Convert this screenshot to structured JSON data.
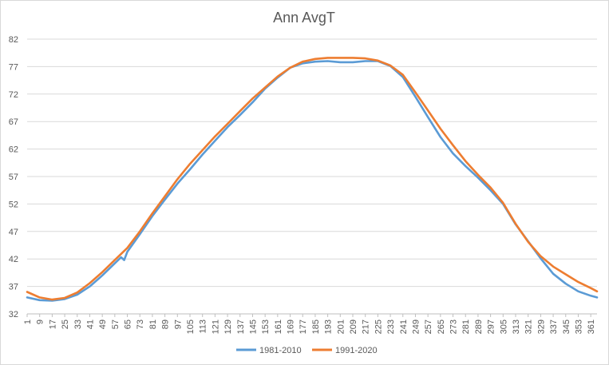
{
  "chart_data": {
    "type": "line",
    "title": "Ann AvgT",
    "xlabel": "",
    "ylabel": "",
    "ylim": [
      32,
      82
    ],
    "yticks": [
      32,
      37,
      42,
      47,
      52,
      57,
      62,
      67,
      72,
      77,
      82
    ],
    "xlim": [
      1,
      365
    ],
    "xticks": [
      1,
      9,
      17,
      25,
      33,
      41,
      49,
      57,
      65,
      73,
      81,
      89,
      97,
      105,
      113,
      121,
      129,
      137,
      145,
      153,
      161,
      169,
      177,
      185,
      193,
      201,
      209,
      217,
      225,
      233,
      241,
      249,
      257,
      265,
      273,
      281,
      289,
      297,
      305,
      313,
      321,
      329,
      337,
      345,
      353,
      361
    ],
    "grid": true,
    "legend_position": "bottom",
    "series": [
      {
        "name": "1981-2010",
        "color": "#5b9bd5",
        "x": [
          1,
          9,
          17,
          25,
          33,
          41,
          49,
          57,
          61,
          63,
          65,
          73,
          81,
          89,
          97,
          105,
          113,
          121,
          129,
          137,
          145,
          153,
          161,
          169,
          177,
          185,
          193,
          201,
          209,
          217,
          225,
          233,
          241,
          249,
          257,
          265,
          273,
          281,
          289,
          297,
          305,
          313,
          321,
          329,
          337,
          345,
          353,
          361,
          365
        ],
        "values": [
          35.0,
          34.5,
          34.4,
          34.7,
          35.5,
          37.0,
          39.0,
          41.2,
          42.3,
          41.8,
          43.3,
          46.5,
          49.8,
          52.8,
          55.7,
          58.3,
          61.0,
          63.5,
          66.0,
          68.2,
          70.5,
          73.0,
          75.0,
          76.8,
          77.6,
          77.9,
          78.0,
          77.8,
          77.8,
          78.0,
          78.0,
          77.1,
          75.1,
          71.5,
          67.8,
          64.2,
          61.2,
          58.9,
          56.8,
          54.5,
          52.0,
          48.3,
          45.2,
          42.1,
          39.3,
          37.5,
          36.1,
          35.3,
          35.0
        ]
      },
      {
        "name": "1991-2020",
        "color": "#ed7d31",
        "x": [
          1,
          9,
          17,
          25,
          33,
          41,
          49,
          57,
          65,
          73,
          81,
          89,
          97,
          105,
          113,
          121,
          129,
          137,
          145,
          153,
          161,
          169,
          177,
          185,
          193,
          201,
          209,
          217,
          225,
          233,
          241,
          249,
          257,
          265,
          273,
          281,
          289,
          297,
          305,
          313,
          321,
          329,
          337,
          345,
          353,
          361,
          365
        ],
        "values": [
          36.0,
          35.0,
          34.6,
          34.9,
          35.9,
          37.6,
          39.6,
          41.8,
          44.0,
          47.0,
          50.3,
          53.4,
          56.5,
          59.3,
          61.8,
          64.3,
          66.6,
          68.9,
          71.2,
          73.2,
          75.2,
          76.8,
          77.9,
          78.4,
          78.6,
          78.6,
          78.6,
          78.5,
          78.1,
          77.2,
          75.5,
          72.3,
          69.0,
          65.7,
          62.7,
          59.8,
          57.3,
          55.0,
          52.2,
          48.4,
          45.1,
          42.5,
          40.6,
          39.2,
          37.8,
          36.7,
          36.1
        ]
      }
    ]
  }
}
